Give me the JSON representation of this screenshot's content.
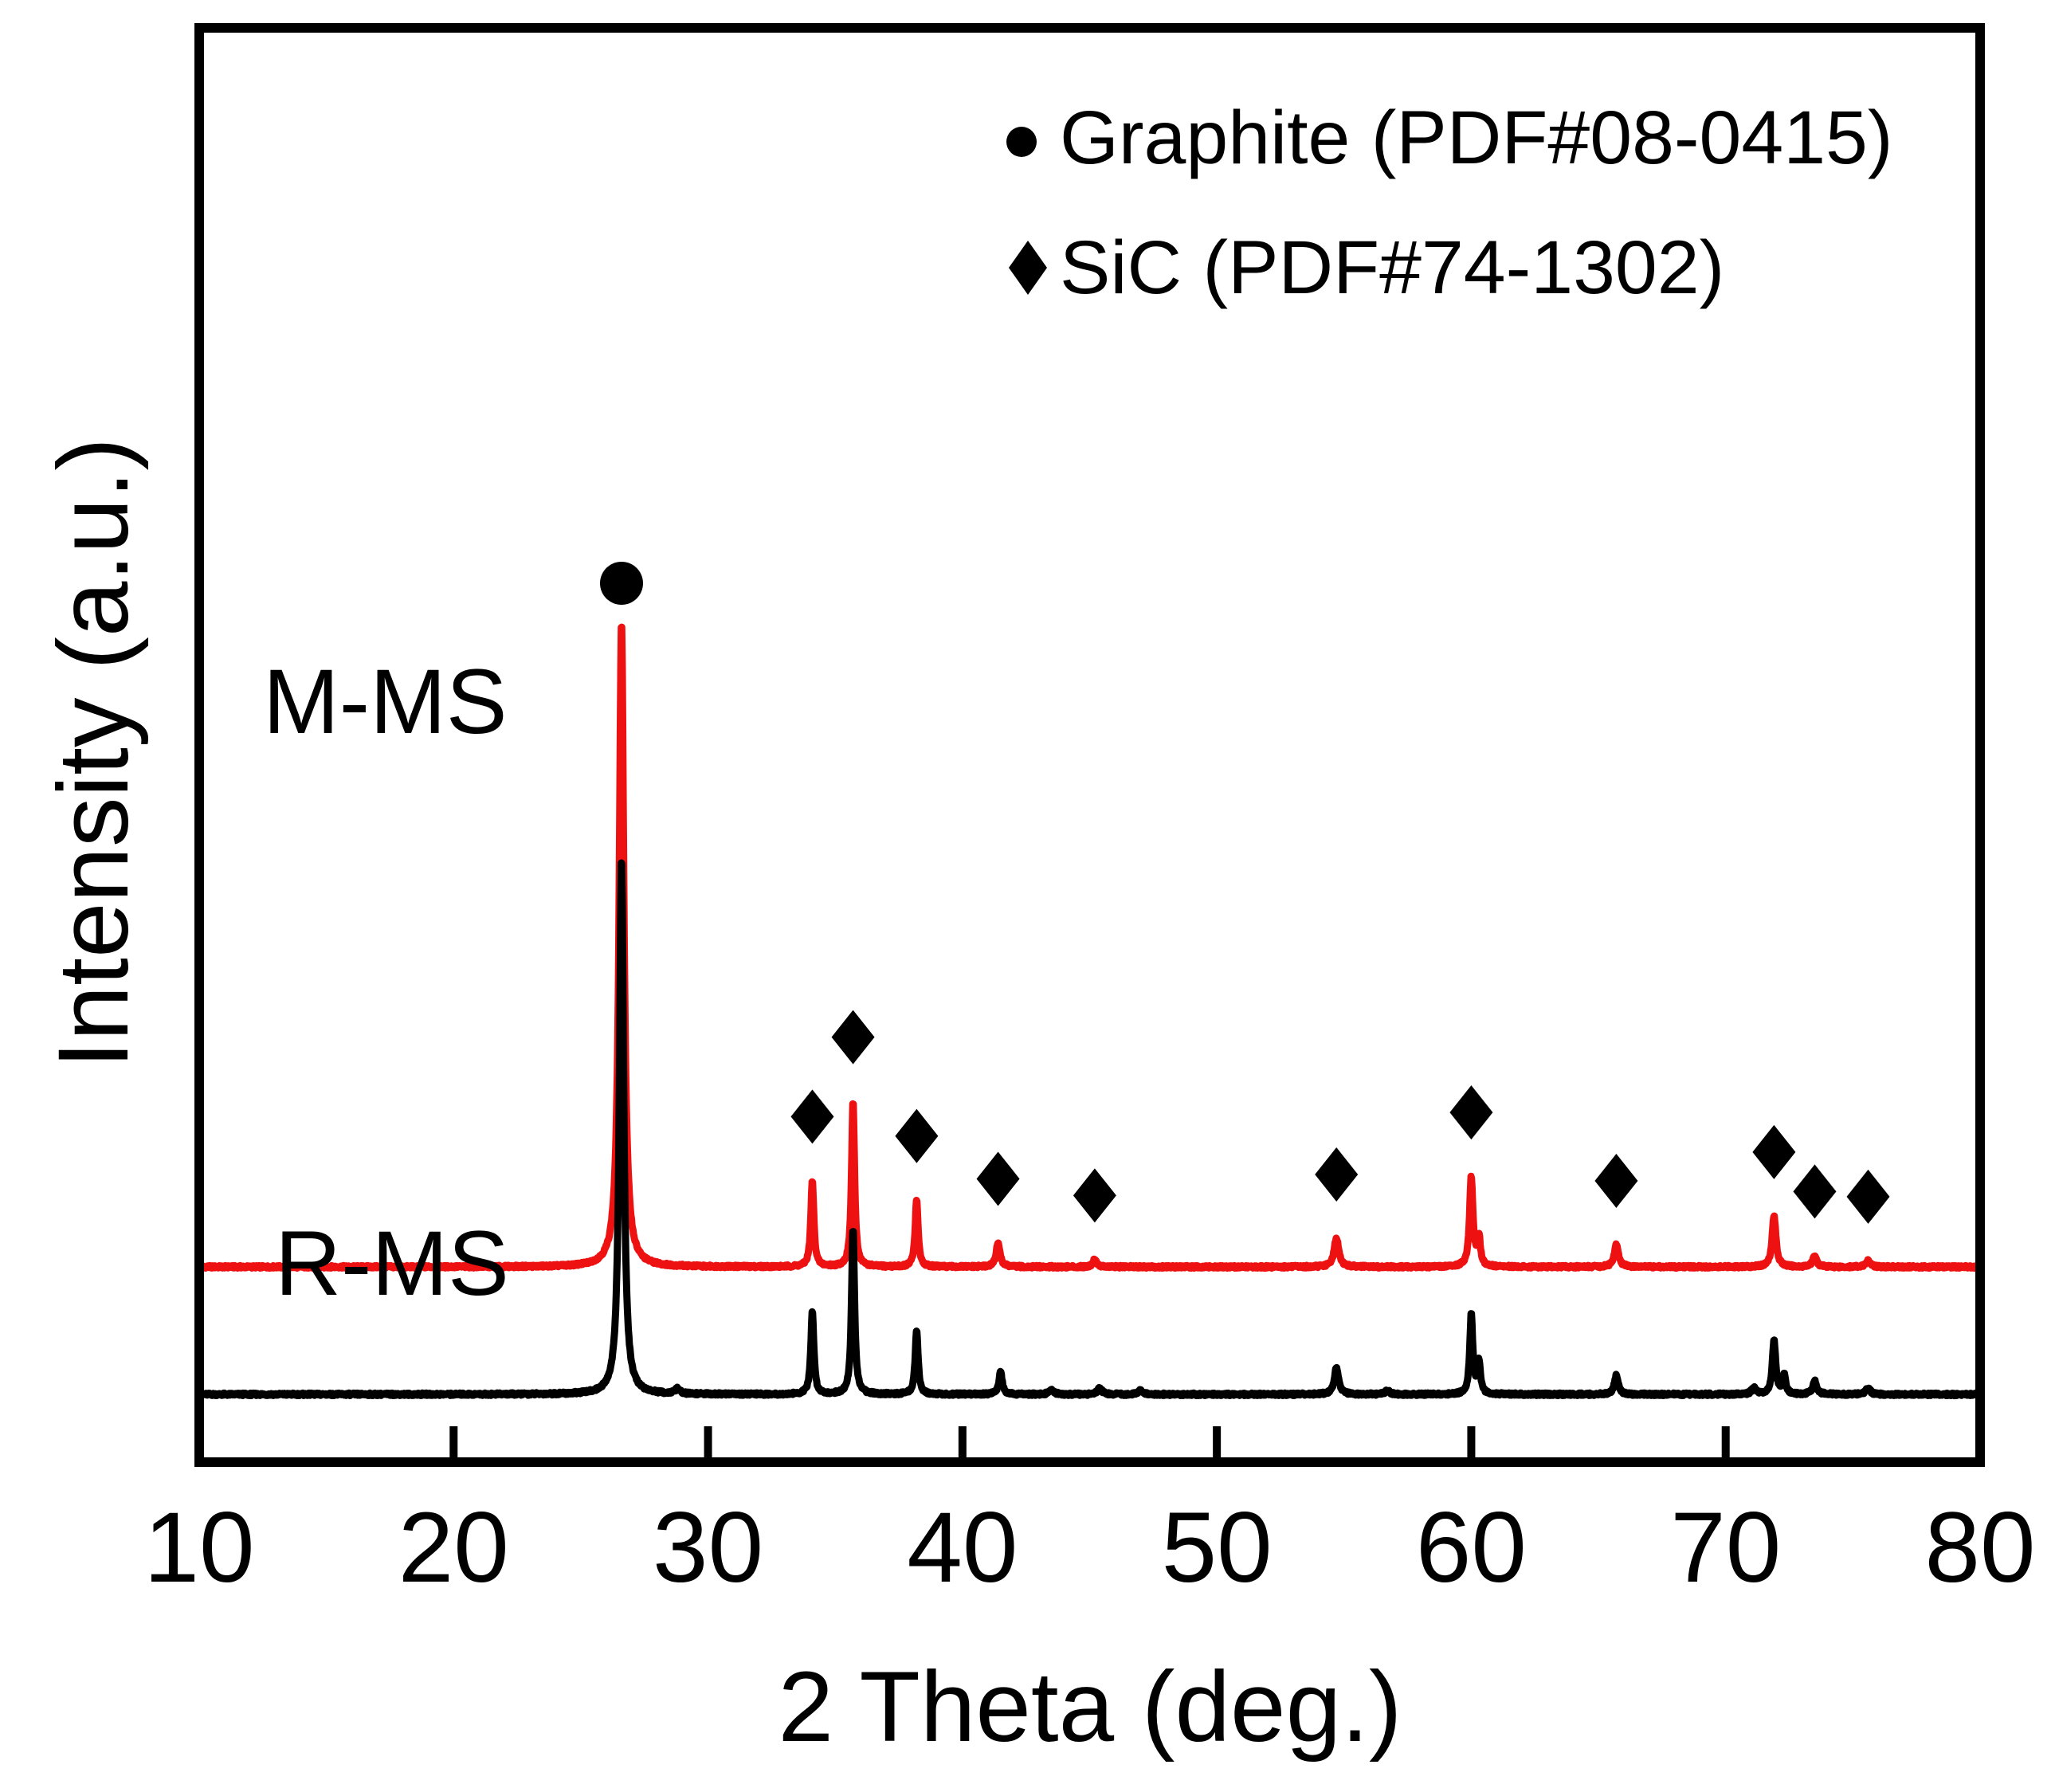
{
  "chart_data": {
    "type": "line",
    "title": "",
    "xlabel": "2 Theta (deg.)",
    "ylabel": "Intensity (a.u.)",
    "xlim": [
      10,
      80
    ],
    "xticks": [
      "10",
      "20",
      "30",
      "40",
      "50",
      "60",
      "70",
      "80"
    ],
    "y_ticks_shown": false,
    "legend": {
      "placement": "top-right",
      "entries": [
        {
          "marker": "circle",
          "label": "Graphite (PDF#08-0415)"
        },
        {
          "marker": "diamond",
          "label": "SiC (PDF#74-1302)"
        }
      ]
    },
    "series": [
      {
        "name": "M-MS",
        "color": "#ee1111",
        "baseline": 2.0,
        "peaks": [
          {
            "x": 26.6,
            "height": 10.1,
            "width": 0.22
          },
          {
            "x": 34.1,
            "height": 1.35,
            "width": 0.14
          },
          {
            "x": 35.7,
            "height": 2.6,
            "width": 0.14
          },
          {
            "x": 38.2,
            "height": 1.05,
            "width": 0.14
          },
          {
            "x": 41.4,
            "height": 0.38,
            "width": 0.18
          },
          {
            "x": 45.2,
            "height": 0.12,
            "width": 0.18
          },
          {
            "x": 54.7,
            "height": 0.45,
            "width": 0.22
          },
          {
            "x": 60.0,
            "height": 1.4,
            "width": 0.16
          },
          {
            "x": 60.3,
            "height": 0.45,
            "width": 0.14
          },
          {
            "x": 65.7,
            "height": 0.35,
            "width": 0.2
          },
          {
            "x": 71.9,
            "height": 0.8,
            "width": 0.18
          },
          {
            "x": 73.5,
            "height": 0.18,
            "width": 0.18
          },
          {
            "x": 75.6,
            "height": 0.1,
            "width": 0.2
          }
        ]
      },
      {
        "name": "R-MS",
        "color": "#000000",
        "baseline": 0.0,
        "peaks": [
          {
            "x": 26.6,
            "height": 8.4,
            "width": 0.2
          },
          {
            "x": 28.8,
            "height": 0.08,
            "width": 0.2
          },
          {
            "x": 34.1,
            "height": 1.3,
            "width": 0.14
          },
          {
            "x": 35.7,
            "height": 2.6,
            "width": 0.14
          },
          {
            "x": 38.2,
            "height": 1.0,
            "width": 0.14
          },
          {
            "x": 41.5,
            "height": 0.35,
            "width": 0.16
          },
          {
            "x": 43.5,
            "height": 0.08,
            "width": 0.2
          },
          {
            "x": 45.4,
            "height": 0.1,
            "width": 0.2
          },
          {
            "x": 47.0,
            "height": 0.06,
            "width": 0.2
          },
          {
            "x": 54.7,
            "height": 0.42,
            "width": 0.2
          },
          {
            "x": 56.7,
            "height": 0.06,
            "width": 0.2
          },
          {
            "x": 60.0,
            "height": 1.25,
            "width": 0.14
          },
          {
            "x": 60.3,
            "height": 0.5,
            "width": 0.14
          },
          {
            "x": 65.7,
            "height": 0.3,
            "width": 0.18
          },
          {
            "x": 71.1,
            "height": 0.1,
            "width": 0.2
          },
          {
            "x": 71.9,
            "height": 0.85,
            "width": 0.16
          },
          {
            "x": 72.3,
            "height": 0.3,
            "width": 0.14
          },
          {
            "x": 73.5,
            "height": 0.22,
            "width": 0.18
          },
          {
            "x": 75.6,
            "height": 0.1,
            "width": 0.2
          }
        ]
      }
    ],
    "peak_markers": [
      {
        "phase": "Graphite",
        "marker": "circle",
        "x": 26.6
      },
      {
        "phase": "SiC",
        "marker": "diamond",
        "x": 34.1
      },
      {
        "phase": "SiC",
        "marker": "diamond",
        "x": 35.7
      },
      {
        "phase": "SiC",
        "marker": "diamond",
        "x": 38.2
      },
      {
        "phase": "SiC",
        "marker": "diamond",
        "x": 41.4
      },
      {
        "phase": "SiC",
        "marker": "diamond",
        "x": 45.2
      },
      {
        "phase": "SiC",
        "marker": "diamond",
        "x": 54.7
      },
      {
        "phase": "SiC",
        "marker": "diamond",
        "x": 60.0
      },
      {
        "phase": "SiC",
        "marker": "diamond",
        "x": 65.7
      },
      {
        "phase": "SiC",
        "marker": "diamond",
        "x": 71.9
      },
      {
        "phase": "SiC",
        "marker": "diamond",
        "x": 73.5
      },
      {
        "phase": "SiC",
        "marker": "diamond",
        "x": 75.6
      }
    ]
  }
}
